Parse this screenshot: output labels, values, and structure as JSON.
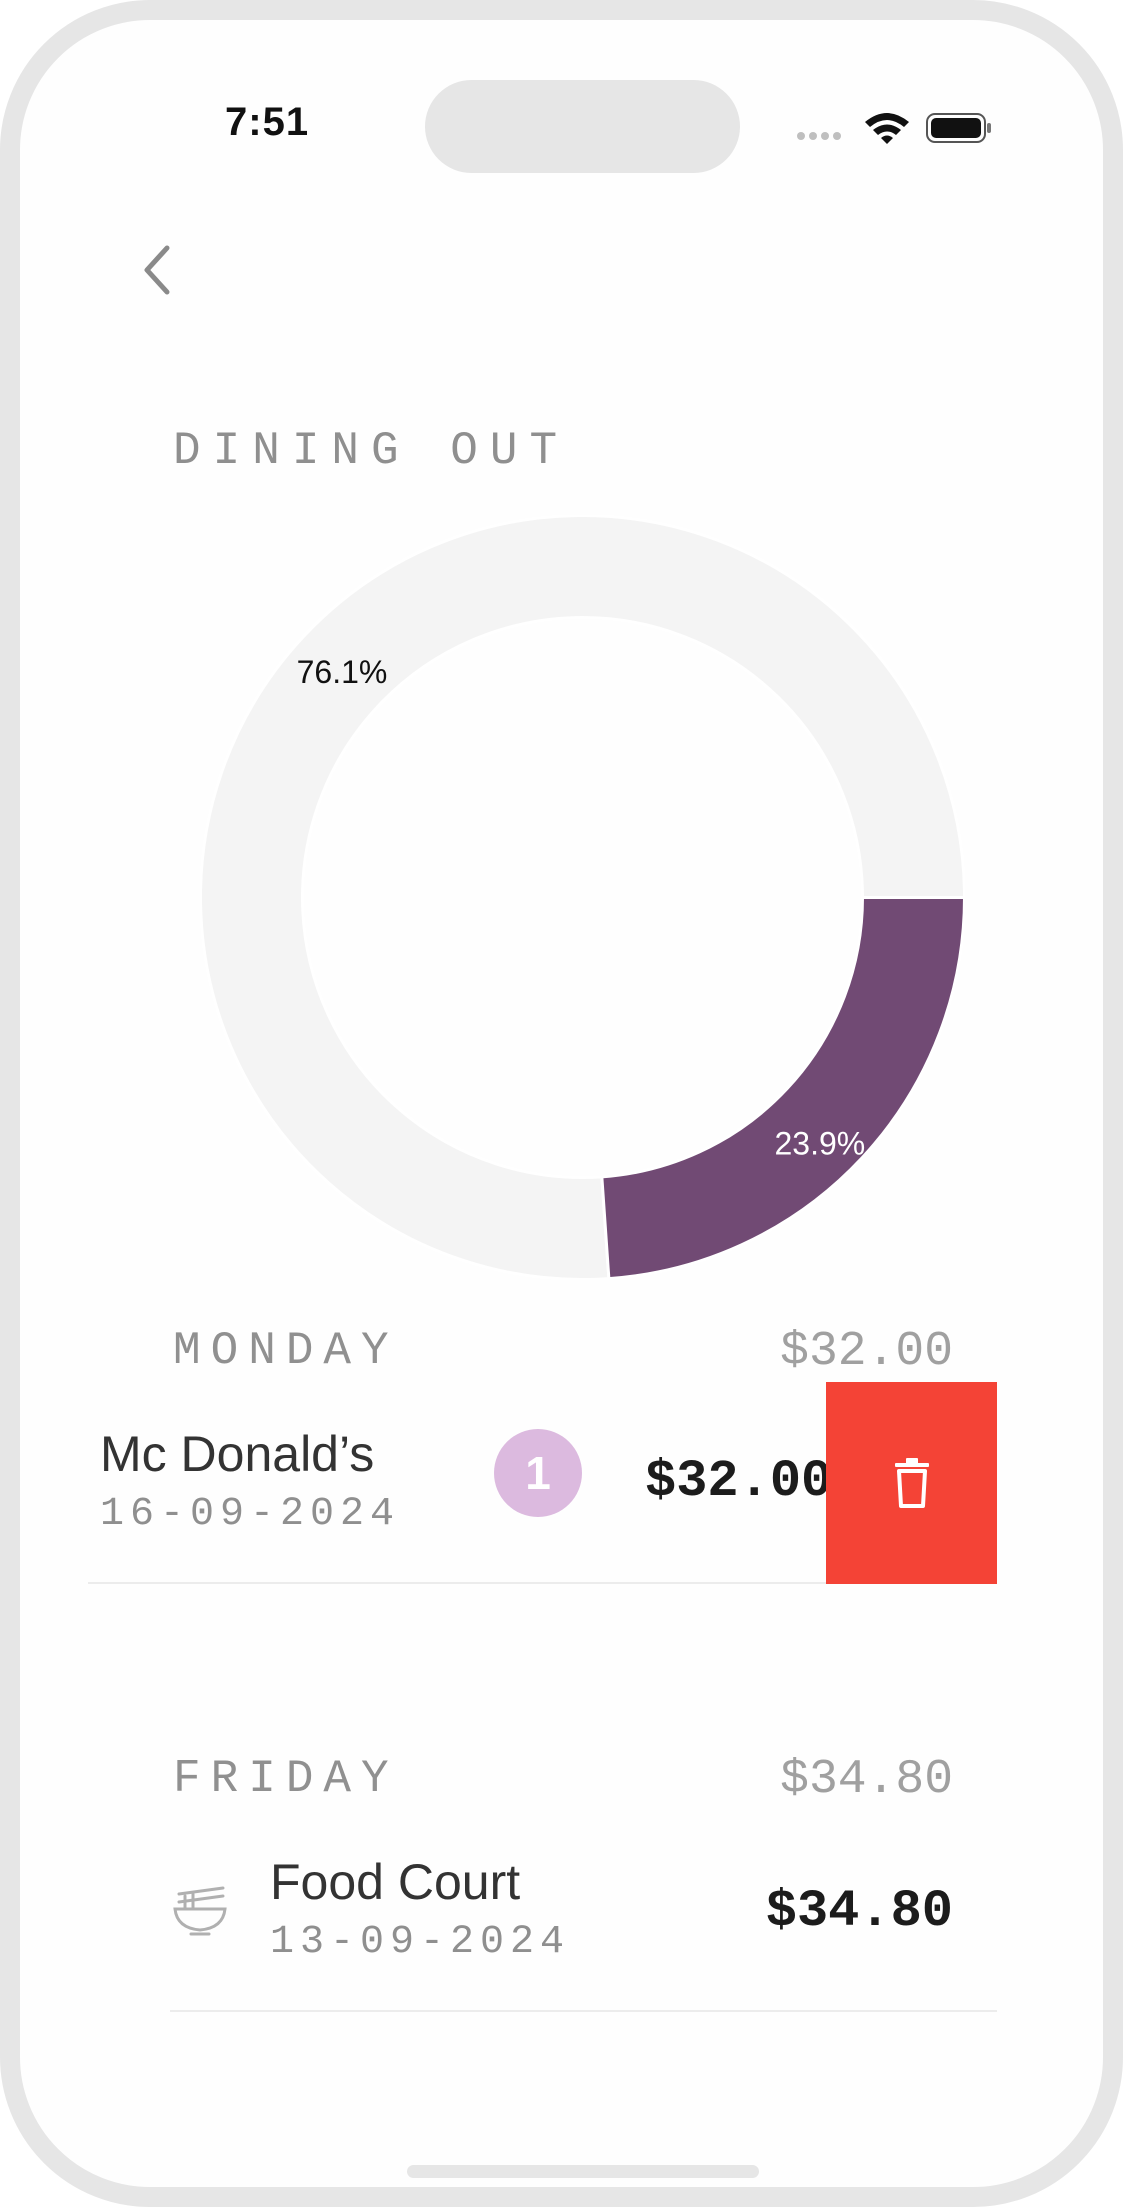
{
  "status_bar": {
    "time": "7:51",
    "icons": [
      "signal-dots-icon",
      "wifi-icon",
      "battery-icon"
    ]
  },
  "nav": {
    "back_icon": "chevron-left-icon"
  },
  "category": {
    "title": "DINING OUT"
  },
  "chart_data": {
    "type": "pie",
    "variant": "donut",
    "slices": [
      {
        "label": "76.1%",
        "value": 76.1,
        "color": "#f4f4f4"
      },
      {
        "label": "23.9%",
        "value": 23.9,
        "color": "#714a74"
      }
    ]
  },
  "groups": [
    {
      "day": "MONDAY",
      "total": "$32.00",
      "items": [
        {
          "merchant": "Mc Donald’s",
          "date": "16-09-2024",
          "badge": "1",
          "amount": "$32.00",
          "delete_icon": "trash-icon",
          "badge_color": "#dcbadf",
          "delete_color": "#f44336"
        }
      ]
    },
    {
      "day": "FRIDAY",
      "total": "$34.80",
      "items": [
        {
          "merchant": "Food Court",
          "date": "13-09-2024",
          "amount": "$34.80",
          "icon": "noodle-bowl-icon"
        }
      ]
    }
  ]
}
